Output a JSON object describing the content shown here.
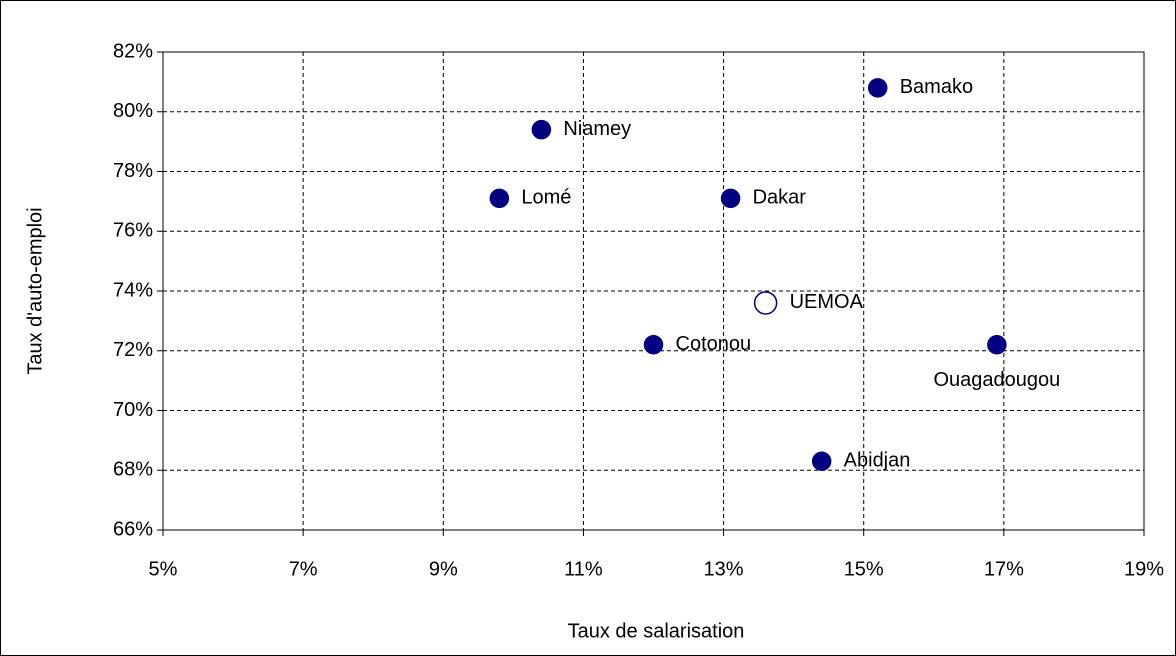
{
  "chart_data": {
    "type": "scatter",
    "xlabel": "Taux de salarisation",
    "ylabel": "Taux d'auto-emploi",
    "points": [
      {
        "label": "Bamako",
        "x": 15.2,
        "y": 80.8,
        "color": "#000080",
        "fill": "#000080",
        "label_position": "right"
      },
      {
        "label": "Niamey",
        "x": 10.4,
        "y": 79.4,
        "color": "#000080",
        "fill": "#000080",
        "label_position": "right"
      },
      {
        "label": "Lomé",
        "x": 9.8,
        "y": 77.1,
        "color": "#000080",
        "fill": "#000080",
        "label_position": "right"
      },
      {
        "label": "Dakar",
        "x": 13.1,
        "y": 77.1,
        "color": "#000080",
        "fill": "#000080",
        "label_position": "right"
      },
      {
        "label": "UEMOA",
        "x": 13.6,
        "y": 73.6,
        "color": "#000080",
        "fill": "#ffffff",
        "label_position": "right"
      },
      {
        "label": "Cotonou",
        "x": 12.0,
        "y": 72.2,
        "color": "#000080",
        "fill": "#000080",
        "label_position": "right"
      },
      {
        "label": "Ouagadougou",
        "x": 16.9,
        "y": 72.2,
        "color": "#000080",
        "fill": "#000080",
        "label_position": "below"
      },
      {
        "label": "Abidjan",
        "x": 14.4,
        "y": 68.3,
        "color": "#000080",
        "fill": "#000080",
        "label_position": "right"
      }
    ],
    "xlim": [
      5,
      19
    ],
    "xticks": [
      {
        "value": 5,
        "label": "5%"
      },
      {
        "value": 7,
        "label": "7%"
      },
      {
        "value": 9,
        "label": "9%"
      },
      {
        "value": 11,
        "label": "11%"
      },
      {
        "value": 13,
        "label": "13%"
      },
      {
        "value": 15,
        "label": "15%"
      },
      {
        "value": 17,
        "label": "17%"
      },
      {
        "value": 19,
        "label": "19%"
      }
    ],
    "ylim": [
      66,
      82
    ],
    "yticks": [
      {
        "value": 66,
        "label": "66%"
      },
      {
        "value": 68,
        "label": "68%"
      },
      {
        "value": 70,
        "label": "70%"
      },
      {
        "value": 72,
        "label": "72%"
      },
      {
        "value": 74,
        "label": "74%"
      },
      {
        "value": 76,
        "label": "76%"
      },
      {
        "value": 78,
        "label": "78%"
      },
      {
        "value": 80,
        "label": "80%"
      },
      {
        "value": 82,
        "label": "82%"
      }
    ],
    "grid": true
  }
}
